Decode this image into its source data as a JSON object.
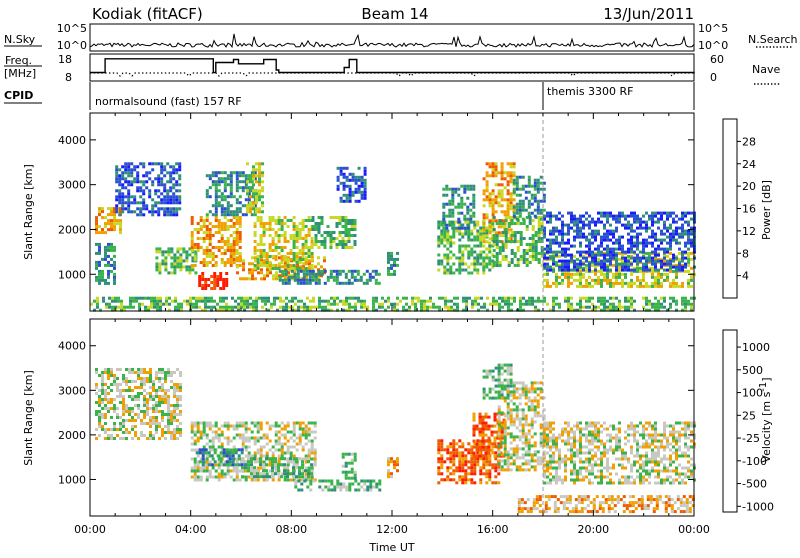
{
  "header": {
    "radar": "Kodiak (fitACF)",
    "beam": "Beam 14",
    "date": "13/Jun/2011"
  },
  "chart_data": [
    {
      "type": "line",
      "panel": "sky-search",
      "left_label": "N.Sky",
      "left_ticks": [
        "10^5",
        "10^0"
      ],
      "right_label": "N.Search",
      "right_ticks": [
        "10^5",
        "10^0"
      ],
      "ylim": [
        0,
        5
      ],
      "scale": "log"
    },
    {
      "type": "line",
      "panel": "freq-nave",
      "left_label": [
        "Freq.",
        "[MHz]"
      ],
      "left_ticks": [
        "18",
        "8"
      ],
      "right_label": "Nave",
      "right_ticks": [
        "60",
        "0"
      ],
      "ylim": [
        8,
        18
      ],
      "series": [
        {
          "x": [
            0.2,
            0.6,
            2.3,
            4.9,
            5.0,
            5.7,
            5.9,
            6.9,
            7.4,
            7.5,
            10.1,
            10.3,
            10.6,
            18.0,
            24.0
          ],
          "values": [
            11,
            16.5,
            16.5,
            11,
            15,
            16.2,
            14.5,
            16.2,
            12,
            11,
            13,
            16.2,
            11,
            11,
            10.5
          ]
        }
      ]
    },
    {
      "type": "table",
      "panel": "cpid",
      "label": "CPID",
      "segments": [
        {
          "name": "normalsound (fast) 157 RF",
          "start": 0.0,
          "end": 18.0
        },
        {
          "name": "themis 3300 RF",
          "start": 18.0,
          "end": 24.0
        }
      ]
    },
    {
      "type": "heatmap",
      "panel": "power",
      "ylabel": "Slant Range [km]",
      "yticks": [
        1000,
        2000,
        3000,
        4000
      ],
      "ylim": [
        180,
        4600
      ],
      "xlim": [
        0,
        24
      ],
      "colorbar": {
        "label": "Power [dB]",
        "ticks": [
          4,
          8,
          12,
          16,
          20,
          24,
          28
        ],
        "range": [
          0,
          32
        ],
        "colors": [
          "#1a1aff",
          "#2a4fd0",
          "#2f8f7a",
          "#39b34a",
          "#c9d825",
          "#f0a000",
          "#f05a00",
          "#ff1a00"
        ]
      },
      "regions": [
        {
          "x0": 0.2,
          "x1": 1.0,
          "y0": 800,
          "y1": 1700,
          "level": 2
        },
        {
          "x0": 0.2,
          "x1": 1.2,
          "y0": 1900,
          "y1": 2500,
          "level": 5
        },
        {
          "x0": 1.0,
          "x1": 3.6,
          "y0": 2300,
          "y1": 3500,
          "level": 1
        },
        {
          "x0": 2.6,
          "x1": 4.2,
          "y0": 1000,
          "y1": 1600,
          "level": 3
        },
        {
          "x0": 4.0,
          "x1": 6.0,
          "y0": 1200,
          "y1": 2300,
          "level": 5
        },
        {
          "x0": 4.3,
          "x1": 5.4,
          "y0": 650,
          "y1": 1050,
          "level": 7
        },
        {
          "x0": 4.6,
          "x1": 6.6,
          "y0": 2300,
          "y1": 3300,
          "level": 2
        },
        {
          "x0": 5.8,
          "x1": 9.3,
          "y0": 900,
          "y1": 1400,
          "level": 5
        },
        {
          "x0": 6.5,
          "x1": 8.8,
          "y0": 1100,
          "y1": 2300,
          "level": 4
        },
        {
          "x0": 6.2,
          "x1": 6.9,
          "y0": 2400,
          "y1": 3500,
          "level": 4
        },
        {
          "x0": 8.8,
          "x1": 10.5,
          "y0": 1600,
          "y1": 2300,
          "level": 3
        },
        {
          "x0": 7.5,
          "x1": 11.5,
          "y0": 800,
          "y1": 1100,
          "level": 2
        },
        {
          "x0": 9.8,
          "x1": 10.9,
          "y0": 2600,
          "y1": 3400,
          "level": 1
        },
        {
          "x0": 11.8,
          "x1": 12.2,
          "y0": 1000,
          "y1": 1500,
          "level": 2
        },
        {
          "x0": 13.8,
          "x1": 16.0,
          "y0": 1000,
          "y1": 2200,
          "level": 3
        },
        {
          "x0": 14.0,
          "x1": 15.2,
          "y0": 2000,
          "y1": 3000,
          "level": 2
        },
        {
          "x0": 15.6,
          "x1": 16.8,
          "y0": 1700,
          "y1": 3500,
          "level": 5
        },
        {
          "x0": 16.0,
          "x1": 18.0,
          "y0": 1200,
          "y1": 2300,
          "level": 3
        },
        {
          "x0": 16.8,
          "x1": 18.0,
          "y0": 2200,
          "y1": 3200,
          "level": 2
        },
        {
          "x0": 18.0,
          "x1": 24.0,
          "y0": 700,
          "y1": 1500,
          "level": 4
        },
        {
          "x0": 18.0,
          "x1": 24.0,
          "y0": 1100,
          "y1": 2400,
          "level": 1
        },
        {
          "x0": 0.0,
          "x1": 24.0,
          "y0": 180,
          "y1": 500,
          "level": 3
        }
      ]
    },
    {
      "type": "heatmap",
      "panel": "velocity",
      "ylabel": "Slant Range [km]",
      "yticks": [
        1000,
        2000,
        3000,
        4000
      ],
      "ylim": [
        180,
        4600
      ],
      "xlim": [
        0,
        24
      ],
      "xticks": [
        "00:00",
        "04:00",
        "08:00",
        "12:00",
        "16:00",
        "20:00",
        "00:00"
      ],
      "xlabel": "Time UT",
      "colorbar": {
        "label": "Velocity [m s",
        "label_sup": "-1",
        "label_close": "]",
        "ticks": [
          "1000",
          "500",
          "100",
          "25",
          "-25",
          "-100",
          "-500",
          "-1000"
        ],
        "colors": [
          "#1a1aff",
          "#2a4fd0",
          "#2f8f7a",
          "#39b34a",
          "#c8c8c0",
          "#f0a000",
          "#f05a00",
          "#ff1a00"
        ]
      },
      "regions": [
        {
          "x0": 0.2,
          "x1": 3.6,
          "y0": 1900,
          "y1": 3500,
          "level": 4
        },
        {
          "x0": 4.0,
          "x1": 9.0,
          "y0": 1000,
          "y1": 2300,
          "level": 4
        },
        {
          "x0": 4.2,
          "x1": 6.0,
          "y0": 1300,
          "y1": 1700,
          "level": 2
        },
        {
          "x0": 6.0,
          "x1": 8.8,
          "y0": 1050,
          "y1": 1500,
          "level": 3
        },
        {
          "x0": 8.0,
          "x1": 11.5,
          "y0": 750,
          "y1": 1000,
          "level": 3
        },
        {
          "x0": 10.0,
          "x1": 10.5,
          "y0": 1000,
          "y1": 1600,
          "level": 3
        },
        {
          "x0": 11.8,
          "x1": 12.2,
          "y0": 1000,
          "y1": 1500,
          "level": 5
        },
        {
          "x0": 13.8,
          "x1": 16.2,
          "y0": 950,
          "y1": 1900,
          "level": 6
        },
        {
          "x0": 15.2,
          "x1": 16.4,
          "y0": 1500,
          "y1": 2500,
          "level": 6
        },
        {
          "x0": 15.6,
          "x1": 16.7,
          "y0": 2800,
          "y1": 3600,
          "level": 3
        },
        {
          "x0": 16.2,
          "x1": 18.0,
          "y0": 1200,
          "y1": 3200,
          "level": 4
        },
        {
          "x0": 18.0,
          "x1": 24.0,
          "y0": 900,
          "y1": 2300,
          "level": 4
        },
        {
          "x0": 17.0,
          "x1": 24.0,
          "y0": 300,
          "y1": 650,
          "level": 5
        }
      ]
    }
  ]
}
